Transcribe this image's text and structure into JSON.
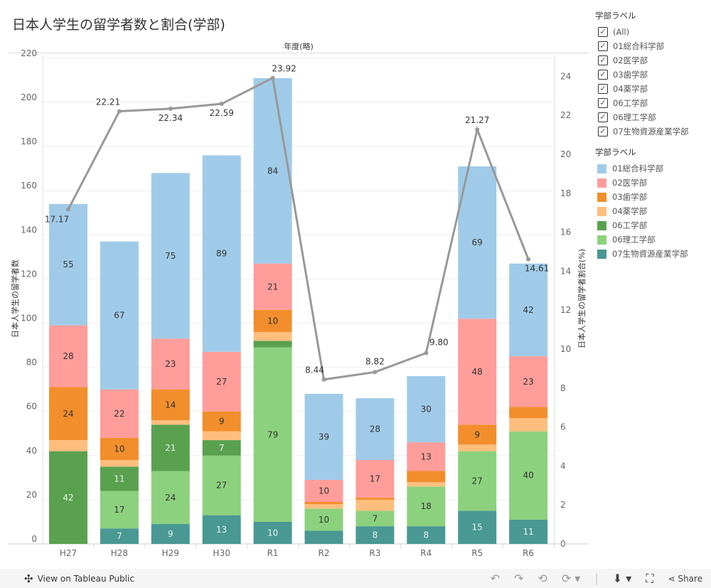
{
  "title": "日本人学生の留学者数と割合(学部)",
  "filter_legend": {
    "title": "学部ラベル",
    "items": [
      "(All)",
      "01総合科学部",
      "02医学部",
      "03歯学部",
      "04薬学部",
      "06工学部",
      "06理工学部",
      "07生物資源産業学部"
    ]
  },
  "color_legend": {
    "title": "学部ラベル"
  },
  "footer": {
    "view_label": "View on Tableau Public",
    "share_label": "Share"
  },
  "chart_data": {
    "type": "bar",
    "title": "日本人学生の留学者数と割合(学部)",
    "x_header": "年度(略)",
    "ylabel": "日本人学生の留学者数",
    "y2label": "日本人学生の留学者割合(%)",
    "ylim": [
      0,
      220
    ],
    "y_ticks": [
      0,
      20,
      40,
      60,
      80,
      100,
      120,
      140,
      160,
      180,
      200,
      220
    ],
    "y2lim": [
      0,
      25
    ],
    "y2_ticks": [
      0,
      2,
      4,
      6,
      8,
      10,
      12,
      14,
      16,
      18,
      20,
      22,
      24
    ],
    "categories": [
      "H27",
      "H28",
      "H29",
      "H30",
      "R1",
      "R2",
      "R3",
      "R4",
      "R5",
      "R6"
    ],
    "series": [
      {
        "name": "07生物資源産業学部",
        "color": "#499894",
        "values": [
          0,
          7,
          9,
          13,
          10,
          6,
          8,
          8,
          15,
          11
        ]
      },
      {
        "name": "06理工学部",
        "color": "#8cd17d",
        "values": [
          0,
          17,
          24,
          27,
          79,
          10,
          7,
          18,
          27,
          40
        ]
      },
      {
        "name": "06工学部",
        "color": "#59a14f",
        "values": [
          42,
          11,
          21,
          7,
          3,
          0,
          0,
          0,
          0,
          0
        ]
      },
      {
        "name": "04薬学部",
        "color": "#ffbe7d",
        "values": [
          5,
          3,
          2,
          4,
          4,
          2,
          5,
          2,
          3,
          6
        ]
      },
      {
        "name": "03歯学部",
        "color": "#f28e2b",
        "values": [
          24,
          10,
          14,
          9,
          10,
          1,
          1,
          5,
          9,
          5
        ]
      },
      {
        "name": "02医学部",
        "color": "#ff9d9a",
        "values": [
          28,
          22,
          23,
          27,
          21,
          10,
          17,
          13,
          48,
          23
        ]
      },
      {
        "name": "01総合科学部",
        "color": "#a0cbe8",
        "values": [
          55,
          67,
          75,
          89,
          84,
          39,
          28,
          30,
          69,
          42
        ]
      }
    ],
    "line": {
      "name": "日本人学生の留学者割合(%)",
      "color": "#999999",
      "values": [
        17.17,
        22.21,
        22.34,
        22.59,
        23.92,
        8.44,
        8.82,
        9.8,
        21.27,
        14.61
      ]
    },
    "grid": true,
    "legend_position": "right"
  }
}
